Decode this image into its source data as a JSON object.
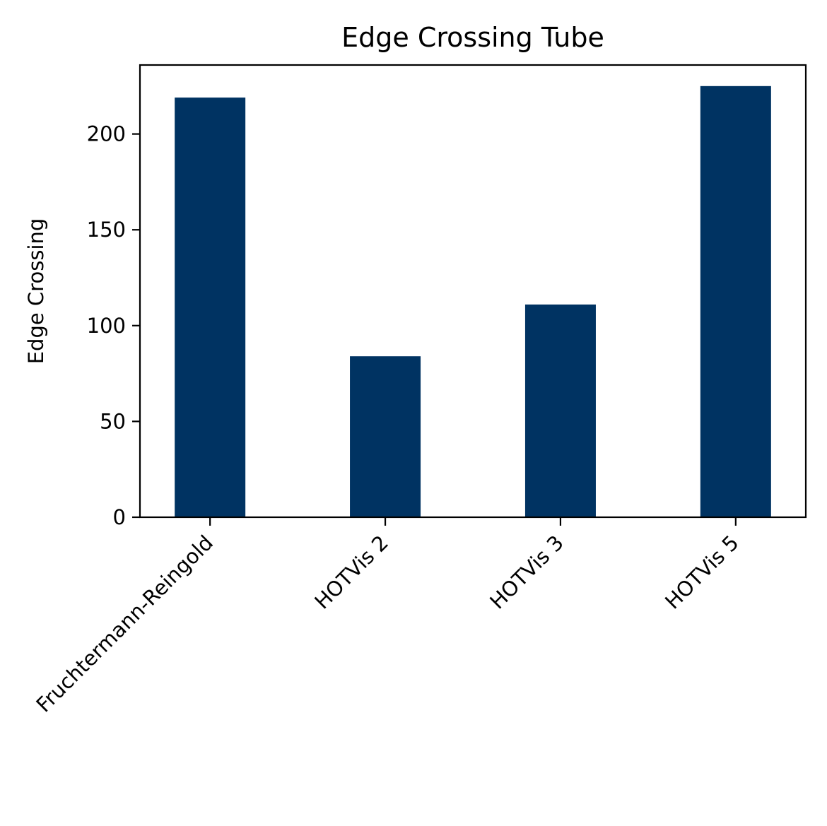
{
  "chart_data": {
    "type": "bar",
    "title": "Edge Crossing Tube",
    "xlabel": "",
    "ylabel": "Edge Crossing",
    "categories": [
      "Fruchtermann-Reingold",
      "HOTVis 2",
      "HOTVis 3",
      "HOTVis 5"
    ],
    "values": [
      219,
      84,
      111,
      225
    ],
    "ylim": [
      0,
      236
    ],
    "yticks": [
      0,
      50,
      100,
      150,
      200
    ],
    "bar_color": "#003362",
    "grid": false,
    "legend": "none"
  }
}
